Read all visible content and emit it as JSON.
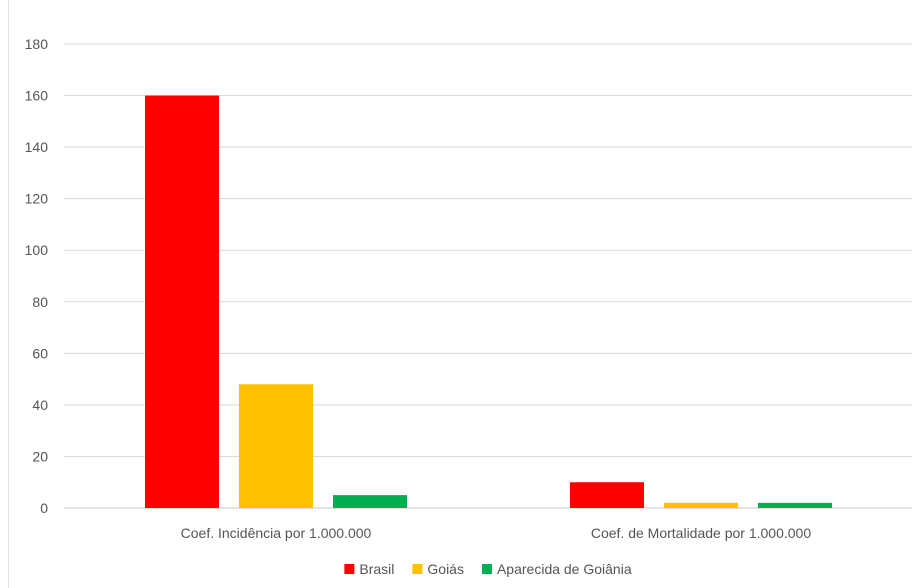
{
  "chart_data": {
    "type": "bar",
    "title": "",
    "xlabel": "",
    "ylabel": "",
    "categories": [
      "Coef. Incidência por 1.000.000",
      "Coef. de Mortalidade por 1.000.000"
    ],
    "series": [
      {
        "name": "Brasil",
        "values": [
          160,
          10
        ],
        "color": "#FF0000"
      },
      {
        "name": "Goiás",
        "values": [
          48,
          2
        ],
        "color": "#FFC000"
      },
      {
        "name": "Aparecida de Goiânia",
        "values": [
          5,
          2
        ],
        "color": "#00B050"
      }
    ],
    "ylim": [
      0,
      180
    ],
    "yticks": [
      0,
      20,
      40,
      60,
      80,
      100,
      120,
      140,
      160,
      180
    ],
    "grid": true,
    "legend_position": "bottom"
  }
}
